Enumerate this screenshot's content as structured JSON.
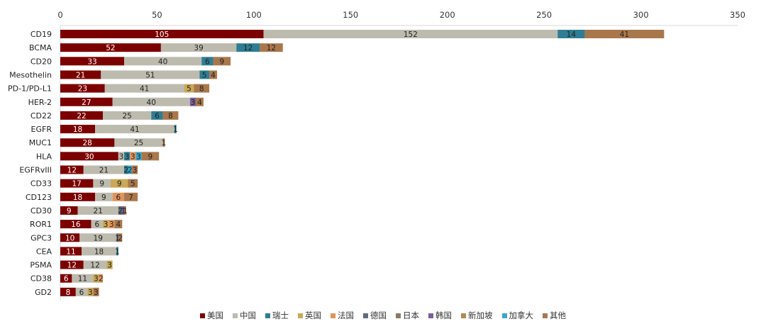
{
  "chart_data": {
    "type": "bar",
    "orientation": "horizontal",
    "stacked": true,
    "xlim": [
      0,
      350
    ],
    "x_ticks": [
      0,
      50,
      100,
      150,
      200,
      250,
      300,
      350
    ],
    "grid": false,
    "legend_position": "bottom",
    "categories": [
      "CD19",
      "BCMA",
      "CD20",
      "Mesothelin",
      "PD-1/PD-L1",
      "HER-2",
      "CD22",
      "EGFR",
      "MUC1",
      "HLA",
      "EGFRvIII",
      "CD33",
      "CD123",
      "CD30",
      "ROR1",
      "GPC3",
      "CEA",
      "PSMA",
      "CD38",
      "GD2"
    ],
    "series": [
      {
        "name": "美国",
        "color": "#7b0000",
        "label_color": "#ffffff",
        "values": [
          105,
          52,
          33,
          21,
          23,
          27,
          22,
          18,
          28,
          30,
          12,
          17,
          18,
          9,
          16,
          10,
          11,
          12,
          6,
          8
        ]
      },
      {
        "name": "中国",
        "color": "#bdbbae",
        "label_color": "#222222",
        "values": [
          152,
          39,
          40,
          51,
          41,
          40,
          25,
          41,
          25,
          3,
          21,
          9,
          9,
          21,
          6,
          19,
          18,
          12,
          11,
          6
        ]
      },
      {
        "name": "瑞士",
        "color": "#2f7d93",
        "label_color": "#222222",
        "values": [
          14,
          12,
          6,
          5,
          0,
          0,
          6,
          1,
          0,
          3,
          2,
          0,
          0,
          0,
          0,
          0,
          1,
          0,
          0,
          0
        ]
      },
      {
        "name": "英国",
        "color": "#c9a857",
        "label_color": "#222222",
        "values": [
          0,
          0,
          0,
          0,
          5,
          0,
          0,
          0,
          0,
          0,
          0,
          9,
          0,
          0,
          3,
          0,
          0,
          3,
          3,
          3
        ]
      },
      {
        "name": "法国",
        "color": "#e0945c",
        "label_color": "#222222",
        "values": [
          0,
          0,
          0,
          0,
          0,
          0,
          0,
          0,
          0,
          3,
          0,
          0,
          6,
          0,
          3,
          0,
          0,
          0,
          2,
          0
        ]
      },
      {
        "name": "德国",
        "color": "#5f6a7d",
        "label_color": "#222222",
        "values": [
          0,
          0,
          0,
          0,
          0,
          0,
          0,
          0,
          0,
          0,
          0,
          0,
          0,
          2,
          0,
          1,
          0,
          0,
          0,
          0
        ]
      },
      {
        "name": "日本",
        "color": "#8c7b64",
        "label_color": "#222222",
        "values": [
          0,
          0,
          0,
          0,
          0,
          0,
          0,
          0,
          0,
          0,
          0,
          0,
          0,
          0,
          0,
          0,
          0,
          0,
          0,
          0
        ]
      },
      {
        "name": "韩国",
        "color": "#7a5f9b",
        "label_color": "#222222",
        "values": [
          0,
          0,
          0,
          0,
          0,
          3,
          0,
          0,
          0,
          0,
          0,
          0,
          0,
          1,
          0,
          0,
          0,
          0,
          0,
          0
        ]
      },
      {
        "name": "新加坡",
        "color": "#b08a4e",
        "label_color": "#222222",
        "values": [
          0,
          0,
          0,
          0,
          0,
          0,
          0,
          0,
          0,
          0,
          0,
          0,
          0,
          0,
          0,
          0,
          0,
          0,
          0,
          0
        ]
      },
      {
        "name": "加拿大",
        "color": "#3aa6c8",
        "label_color": "#222222",
        "values": [
          0,
          0,
          0,
          0,
          0,
          0,
          0,
          0,
          0,
          3,
          2,
          0,
          0,
          0,
          0,
          0,
          0,
          0,
          0,
          0
        ]
      },
      {
        "name": "其他",
        "color": "#a9774c",
        "label_color": "#222222",
        "values": [
          41,
          12,
          9,
          4,
          8,
          4,
          8,
          0,
          1,
          9,
          3,
          5,
          7,
          1,
          4,
          2,
          0,
          0,
          0,
          3
        ]
      }
    ]
  }
}
